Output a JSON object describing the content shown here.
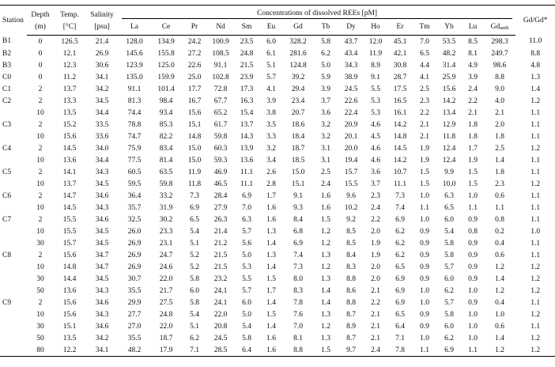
{
  "table": {
    "header": {
      "station": "Station",
      "depth": [
        "Depth",
        "(m)"
      ],
      "temp": [
        "Temp.",
        "[°C]"
      ],
      "salinity": [
        "Salinity",
        "[psu]"
      ],
      "concentrations": "Concentrations of dissolved REEs [pM]",
      "elements": [
        {
          "text": "La"
        },
        {
          "text": "Ce"
        },
        {
          "text": "Pr"
        },
        {
          "text": "Nd"
        },
        {
          "text": "Sm"
        },
        {
          "text": "Eu"
        },
        {
          "text": "Gd"
        },
        {
          "text": "Tb"
        },
        {
          "text": "Dy"
        },
        {
          "text": "Ho"
        },
        {
          "text": "Er"
        },
        {
          "text": "Tm"
        },
        {
          "text": "Yb"
        },
        {
          "text": "Lu"
        },
        {
          "text": "Gd",
          "sub": "anth"
        }
      ],
      "ratio": "Gd/Gd*"
    },
    "groups": [
      {
        "station": "B1",
        "rows": [
          [
            "0",
            "126.5",
            "21.4",
            "128.0",
            "134.9",
            "24.2",
            "100.9",
            "23.5",
            "6.0",
            "328.2",
            "5.8",
            "43.7",
            "12.0",
            "45.1",
            "7.0",
            "53.5",
            "8.5",
            "298.3",
            "11.0"
          ]
        ]
      },
      {
        "station": "B2",
        "rows": [
          [
            "0",
            "12.1",
            "26.9",
            "145.6",
            "155.8",
            "27.2",
            "108.5",
            "24.8",
            "6.1",
            "281.6",
            "6.2",
            "43.4",
            "11.9",
            "42.1",
            "6.5",
            "48.2",
            "8.1",
            "249.7",
            "8.8"
          ]
        ]
      },
      {
        "station": "B3",
        "rows": [
          [
            "0",
            "12.3",
            "30.6",
            "123.9",
            "125.0",
            "22.6",
            "91.1",
            "21.5",
            "5.1",
            "124.8",
            "5.0",
            "34.3",
            "8.9",
            "30.8",
            "4.4",
            "31.4",
            "4.9",
            "98.6",
            "4.8"
          ]
        ]
      },
      {
        "station": "C0",
        "rows": [
          [
            "0",
            "11.2",
            "34.1",
            "135.0",
            "159.9",
            "25.0",
            "102.8",
            "23.9",
            "5.7",
            "39.2",
            "5.9",
            "38.9",
            "9.1",
            "28.7",
            "4.1",
            "25.9",
            "3.9",
            "8.8",
            "1.3"
          ]
        ]
      },
      {
        "station": "C1",
        "rows": [
          [
            "2",
            "13.7",
            "34.2",
            "91.1",
            "101.4",
            "17.7",
            "72.8",
            "17.3",
            "4.1",
            "29.4",
            "3.9",
            "24.5",
            "5.5",
            "17.5",
            "2.5",
            "15.6",
            "2.4",
            "9.0",
            "1.4"
          ]
        ]
      },
      {
        "station": "C2",
        "rows": [
          [
            "2",
            "13.3",
            "34.5",
            "81.3",
            "98.4",
            "16.7",
            "67.7",
            "16.3",
            "3.9",
            "23.4",
            "3.7",
            "22.6",
            "5.3",
            "16.5",
            "2.3",
            "14.2",
            "2.2",
            "4.0",
            "1.2"
          ],
          [
            "10",
            "13.5",
            "34.4",
            "74.4",
            "93.4",
            "15.6",
            "65.2",
            "15.4",
            "3.8",
            "20.7",
            "3.6",
            "22.4",
            "5.3",
            "16.1",
            "2.2",
            "13.4",
            "2.1",
            "2.1",
            "1.1"
          ]
        ]
      },
      {
        "station": "C3",
        "rows": [
          [
            "2",
            "15.2",
            "33.5",
            "78.8",
            "85.3",
            "15.1",
            "61.7",
            "13.7",
            "3.5",
            "18.6",
            "3.2",
            "20.9",
            "4.6",
            "14.2",
            "2.1",
            "12.9",
            "1.8",
            "2.0",
            "1.1"
          ],
          [
            "10",
            "15.6",
            "33.6",
            "74.7",
            "82.2",
            "14.8",
            "59.8",
            "14.3",
            "3.3",
            "18.4",
            "3.2",
            "20.1",
            "4.5",
            "14.8",
            "2.1",
            "11.8",
            "1.8",
            "1.8",
            "1.1"
          ]
        ]
      },
      {
        "station": "C4",
        "rows": [
          [
            "2",
            "14.5",
            "34.0",
            "75.9",
            "83.4",
            "15.0",
            "60.3",
            "13.9",
            "3.2",
            "18.7",
            "3.1",
            "20.0",
            "4.6",
            "14.5",
            "1.9",
            "12.4",
            "1.7",
            "2.5",
            "1.2"
          ],
          [
            "10",
            "13.6",
            "34.4",
            "77.5",
            "81.4",
            "15.0",
            "59.3",
            "13.6",
            "3.4",
            "18.5",
            "3.1",
            "19.4",
            "4.6",
            "14.2",
            "1.9",
            "12.4",
            "1.9",
            "1.4",
            "1.1"
          ]
        ]
      },
      {
        "station": "C5",
        "rows": [
          [
            "2",
            "14.1",
            "34.3",
            "60.5",
            "63.5",
            "11.9",
            "46.9",
            "11.1",
            "2.6",
            "15.0",
            "2.5",
            "15.7",
            "3.6",
            "10.7",
            "1.5",
            "9.9",
            "1.5",
            "1.8",
            "1.1"
          ],
          [
            "10",
            "13.7",
            "34.5",
            "59.5",
            "59.8",
            "11.8",
            "46.5",
            "11.1",
            "2.8",
            "15.1",
            "2.4",
            "15.5",
            "3.7",
            "11.1",
            "1.5",
            "10.0",
            "1.5",
            "2.3",
            "1.2"
          ]
        ]
      },
      {
        "station": "C6",
        "rows": [
          [
            "2",
            "14.7",
            "34.6",
            "36.4",
            "33.2",
            "7.3",
            "28.4",
            "6.9",
            "1.7",
            "9.1",
            "1.6",
            "9.6",
            "2.3",
            "7.3",
            "1.0",
            "6.3",
            "1.0",
            "0.6",
            "1.1"
          ],
          [
            "10",
            "14.5",
            "34.3",
            "35.7",
            "31.9",
            "6.9",
            "27.9",
            "7.0",
            "1.6",
            "9.3",
            "1.6",
            "10.2",
            "2.4",
            "7.4",
            "1.1",
            "6.5",
            "1.1",
            "1.1",
            "1.1"
          ]
        ]
      },
      {
        "station": "C7",
        "rows": [
          [
            "2",
            "15.5",
            "34.6",
            "32.5",
            "30.2",
            "6.5",
            "26.3",
            "6.3",
            "1.6",
            "8.4",
            "1.5",
            "9.2",
            "2.2",
            "6.9",
            "1.0",
            "6.0",
            "0.9",
            "0.8",
            "1.1"
          ],
          [
            "10",
            "15.5",
            "34.5",
            "26.0",
            "23.3",
            "5.4",
            "21.4",
            "5.7",
            "1.3",
            "6.8",
            "1.2",
            "8.5",
            "2.0",
            "6.2",
            "0.9",
            "5.4",
            "0.8",
            "0.2",
            "1.0"
          ],
          [
            "30",
            "15.7",
            "34.5",
            "26.9",
            "23.1",
            "5.1",
            "21.2",
            "5.6",
            "1.4",
            "6.9",
            "1.2",
            "8.5",
            "1.9",
            "6.2",
            "0.9",
            "5.8",
            "0.9",
            "0.4",
            "1.1"
          ]
        ]
      },
      {
        "station": "C8",
        "rows": [
          [
            "2",
            "15.6",
            "34.7",
            "26.9",
            "24.7",
            "5.2",
            "21.5",
            "5.0",
            "1.3",
            "7.4",
            "1.3",
            "8.4",
            "1.9",
            "6.2",
            "0.9",
            "5.8",
            "0.9",
            "0.6",
            "1.1"
          ],
          [
            "10",
            "14.8",
            "34.7",
            "26.9",
            "24.6",
            "5.2",
            "21.5",
            "5.3",
            "1.4",
            "7.3",
            "1.2",
            "8.3",
            "2.0",
            "6.5",
            "0.9",
            "5.7",
            "0.9",
            "1.2",
            "1.2"
          ],
          [
            "30",
            "14.4",
            "34.5",
            "30.7",
            "22.0",
            "5.8",
            "23.2",
            "5.5",
            "1.5",
            "8.0",
            "1.3",
            "8.8",
            "2.0",
            "6.9",
            "0.9",
            "6.0",
            "0.9",
            "1.4",
            "1.2"
          ],
          [
            "50",
            "13.6",
            "34.3",
            "35.5",
            "21.7",
            "6.0",
            "24.1",
            "5.7",
            "1.7",
            "8.3",
            "1.4",
            "8.6",
            "2.1",
            "6.9",
            "1.0",
            "6.2",
            "1.0",
            "1.2",
            "1.2"
          ]
        ]
      },
      {
        "station": "C9",
        "rows": [
          [
            "2",
            "15.6",
            "34.6",
            "29.9",
            "27.5",
            "5.8",
            "24.1",
            "6.0",
            "1.4",
            "7.8",
            "1.4",
            "8.8",
            "2.2",
            "6.9",
            "1.0",
            "5.7",
            "0.9",
            "0.4",
            "1.1"
          ],
          [
            "10",
            "15.6",
            "34.3",
            "27.7",
            "24.8",
            "5.4",
            "22.0",
            "5.0",
            "1.5",
            "7.6",
            "1.3",
            "8.7",
            "2.1",
            "6.5",
            "0.9",
            "5.8",
            "1.0",
            "1.0",
            "1.2"
          ],
          [
            "30",
            "15.1",
            "34.6",
            "27.0",
            "22.0",
            "5.1",
            "20.8",
            "5.4",
            "1.4",
            "7.0",
            "1.2",
            "8.9",
            "2.1",
            "6.4",
            "0.9",
            "6.0",
            "1.0",
            "0.6",
            "1.1"
          ],
          [
            "50",
            "13.5",
            "34.2",
            "35.5",
            "18.7",
            "6.2",
            "24.5",
            "5.8",
            "1.6",
            "8.1",
            "1.3",
            "8.7",
            "2.1",
            "7.1",
            "1.0",
            "6.2",
            "1.0",
            "1.4",
            "1.2"
          ],
          [
            "80",
            "12.2",
            "34.1",
            "48.2",
            "17.9",
            "7.1",
            "28.5",
            "6.4",
            "1.6",
            "8.8",
            "1.5",
            "9.7",
            "2.4",
            "7.8",
            "1.1",
            "6.9",
            "1.1",
            "1.2",
            "1.2"
          ]
        ]
      }
    ]
  }
}
